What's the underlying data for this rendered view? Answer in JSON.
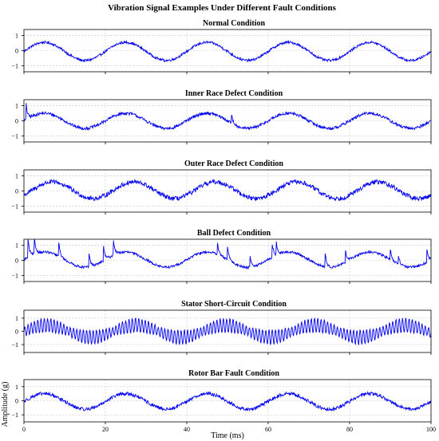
{
  "figure": {
    "suptitle": "Vibration Signal Examples Under Different Fault Conditions",
    "xlabel": "Time (ms)",
    "ylabel": "Amplitude (g)",
    "line_color": "#0000ee",
    "grid_color": "#c8c8c8"
  },
  "chart_data": [
    {
      "type": "line",
      "title": "Normal Condition",
      "xlim": [
        0,
        100
      ],
      "ylim": [
        -1.4,
        1.4
      ],
      "xticks": [
        0,
        20,
        40,
        60,
        80,
        100
      ],
      "yticks": [
        -1,
        0,
        1
      ],
      "series": [
        {
          "base_amplitude": 0.6,
          "period_ms": 20,
          "phase_ms": 0,
          "noise": 0.08,
          "mean": -0.05,
          "impulses": [],
          "hf_amplitude": 0
        }
      ],
      "show_xticklabels": false
    },
    {
      "type": "line",
      "title": "Inner Race Defect Condition",
      "xlim": [
        0,
        100
      ],
      "ylim": [
        -1.4,
        1.4
      ],
      "xticks": [
        0,
        20,
        40,
        60,
        80,
        100
      ],
      "yticks": [
        -1,
        0,
        1
      ],
      "series": [
        {
          "base_amplitude": 0.5,
          "period_ms": 20,
          "phase_ms": 0,
          "noise": 0.1,
          "mean": 0.0,
          "impulses": [
            {
              "x": 0.5,
              "height": 1.2
            },
            {
              "x": 51,
              "height": 0.6
            }
          ],
          "hf_amplitude": 0
        }
      ],
      "show_xticklabels": false
    },
    {
      "type": "line",
      "title": "Outer Race Defect Condition",
      "xlim": [
        0,
        100
      ],
      "ylim": [
        -1.4,
        1.4
      ],
      "xticks": [
        0,
        20,
        40,
        60,
        80,
        100
      ],
      "yticks": [
        -1,
        0,
        1
      ],
      "series": [
        {
          "base_amplitude": 0.55,
          "period_ms": 20,
          "phase_ms": 2,
          "noise": 0.15,
          "mean": 0.05,
          "impulses": [],
          "hf_amplitude": 0
        }
      ],
      "show_xticklabels": false
    },
    {
      "type": "line",
      "title": "Ball Defect Condition",
      "xlim": [
        0,
        100
      ],
      "ylim": [
        -1.4,
        1.4
      ],
      "xticks": [
        0,
        20,
        40,
        60,
        80,
        100
      ],
      "yticks": [
        -1,
        0,
        1
      ],
      "series": [
        {
          "base_amplitude": 0.5,
          "period_ms": 20,
          "phase_ms": 0,
          "noise": 0.08,
          "mean": 0.05,
          "impulses": [
            {
              "x": 1,
              "height": 1.3
            },
            {
              "x": 2.5,
              "height": 1.3
            },
            {
              "x": 8.5,
              "height": 1.1
            },
            {
              "x": 16,
              "height": 0.9
            },
            {
              "x": 19.5,
              "height": 1.1
            },
            {
              "x": 22,
              "height": 1.0
            },
            {
              "x": 47.5,
              "height": 0.8
            },
            {
              "x": 50,
              "height": 0.9
            },
            {
              "x": 55.5,
              "height": 0.9
            },
            {
              "x": 61,
              "height": 0.9
            },
            {
              "x": 62,
              "height": 0.8
            },
            {
              "x": 74,
              "height": 0.9
            },
            {
              "x": 79,
              "height": 0.7
            },
            {
              "x": 90,
              "height": 0.7
            },
            {
              "x": 92,
              "height": 0.6
            },
            {
              "x": 99,
              "height": 0.8
            }
          ],
          "hf_amplitude": 0
        }
      ],
      "show_xticklabels": false
    },
    {
      "type": "line",
      "title": "Stator Short-Circuit Condition",
      "xlim": [
        0,
        100
      ],
      "ylim": [
        -1.6,
        1.6
      ],
      "xticks": [
        0,
        20,
        40,
        60,
        80,
        100
      ],
      "yticks": [
        -1,
        0,
        1
      ],
      "series": [
        {
          "base_amplitude": 0.6,
          "period_ms": 22,
          "phase_ms": 0,
          "noise": 0.05,
          "mean": 0.0,
          "impulses": [],
          "hf_amplitude": 0.55,
          "hf_period_ms": 0.8
        }
      ],
      "show_xticklabels": false
    },
    {
      "type": "line",
      "title": "Rotor Bar Fault Condition",
      "xlim": [
        0,
        100
      ],
      "ylim": [
        -1.5,
        1.5
      ],
      "xticks": [
        0,
        20,
        40,
        60,
        80,
        100
      ],
      "yticks": [
        -1,
        0,
        1
      ],
      "xticklabels": [
        "0",
        "20",
        "40",
        "60",
        "80",
        "100"
      ],
      "series": [
        {
          "base_amplitude": 0.55,
          "period_ms": 20,
          "phase_ms": 0,
          "noise": 0.12,
          "mean": -0.05,
          "impulses": [],
          "hf_amplitude": 0
        }
      ],
      "show_xticklabels": true
    }
  ]
}
